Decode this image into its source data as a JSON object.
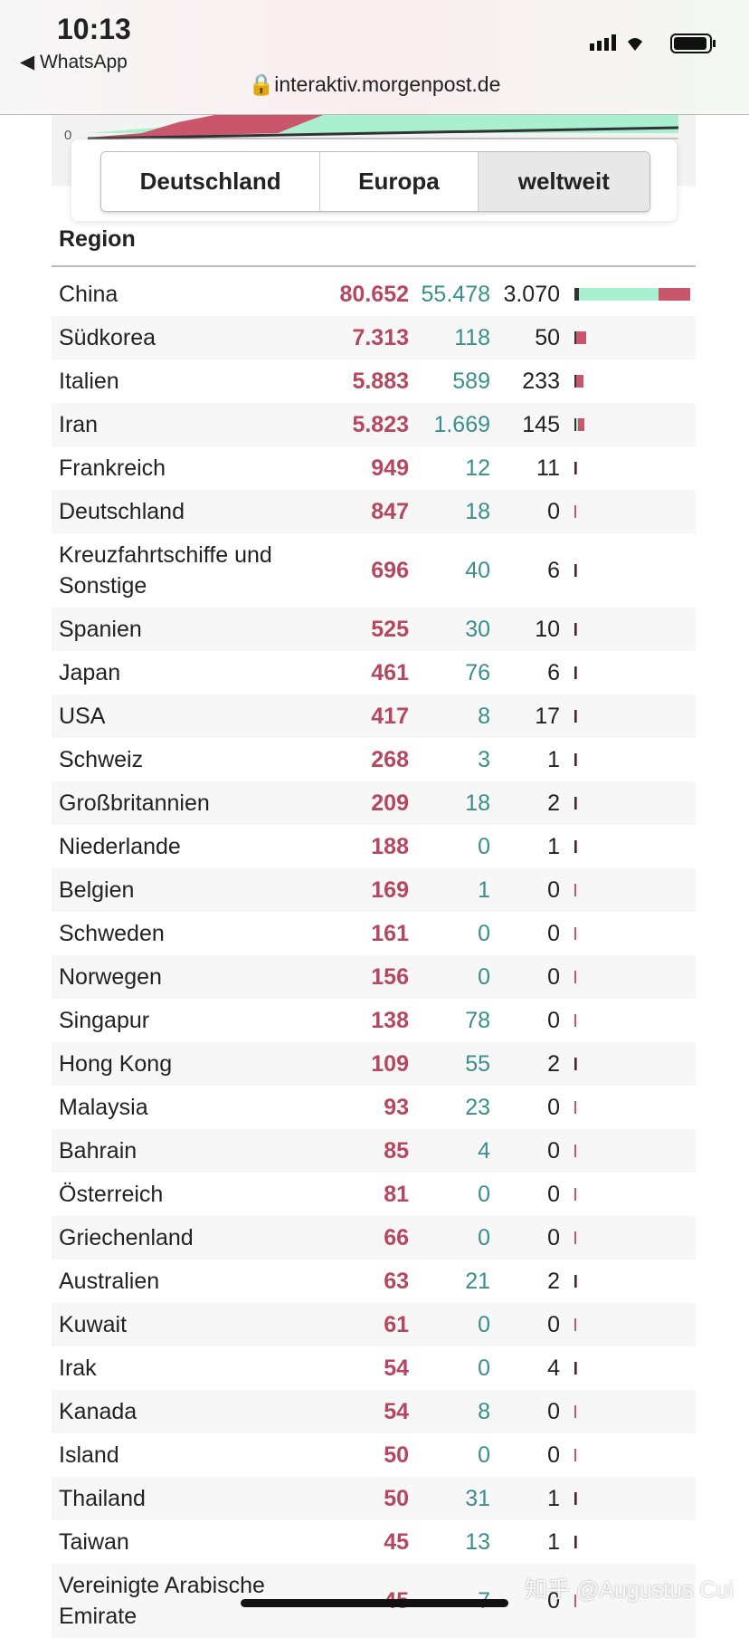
{
  "status_bar": {
    "time": "10:13",
    "back_app": "WhatsApp",
    "url": "interaktiv.morgenpost.de"
  },
  "chart_top": {
    "y_label": "0"
  },
  "tabs": [
    "Deutschland",
    "Europa",
    "weltweit"
  ],
  "table": {
    "header": "Region",
    "rows": [
      [
        "China",
        "80.652",
        "55.478",
        "3.070"
      ],
      [
        "Südkorea",
        "7.313",
        "118",
        "50"
      ],
      [
        "Italien",
        "5.883",
        "589",
        "233"
      ],
      [
        "Iran",
        "5.823",
        "1.669",
        "145"
      ],
      [
        "Frankreich",
        "949",
        "12",
        "11"
      ],
      [
        "Deutschland",
        "847",
        "18",
        "0"
      ],
      [
        "Kreuzfahrtschiffe und Sonstige",
        "696",
        "40",
        "6"
      ],
      [
        "Spanien",
        "525",
        "30",
        "10"
      ],
      [
        "Japan",
        "461",
        "76",
        "6"
      ],
      [
        "USA",
        "417",
        "8",
        "17"
      ],
      [
        "Schweiz",
        "268",
        "3",
        "1"
      ],
      [
        "Großbritannien",
        "209",
        "18",
        "2"
      ],
      [
        "Niederlande",
        "188",
        "0",
        "1"
      ],
      [
        "Belgien",
        "169",
        "1",
        "0"
      ],
      [
        "Schweden",
        "161",
        "0",
        "0"
      ],
      [
        "Norwegen",
        "156",
        "0",
        "0"
      ],
      [
        "Singapur",
        "138",
        "78",
        "0"
      ],
      [
        "Hong Kong",
        "109",
        "55",
        "2"
      ],
      [
        "Malaysia",
        "93",
        "23",
        "0"
      ],
      [
        "Bahrain",
        "85",
        "4",
        "0"
      ],
      [
        "Österreich",
        "81",
        "0",
        "0"
      ],
      [
        "Griechenland",
        "66",
        "0",
        "0"
      ],
      [
        "Australien",
        "63",
        "21",
        "2"
      ],
      [
        "Kuwait",
        "61",
        "0",
        "0"
      ],
      [
        "Irak",
        "54",
        "0",
        "4"
      ],
      [
        "Kanada",
        "54",
        "8",
        "0"
      ],
      [
        "Island",
        "50",
        "0",
        "0"
      ],
      [
        "Thailand",
        "50",
        "31",
        "1"
      ],
      [
        "Taiwan",
        "45",
        "13",
        "1"
      ],
      [
        "Vereinigte Arabische Emirate",
        "45",
        "7",
        "0"
      ]
    ]
  },
  "watermark": "知乎 @Augustus Cui"
}
